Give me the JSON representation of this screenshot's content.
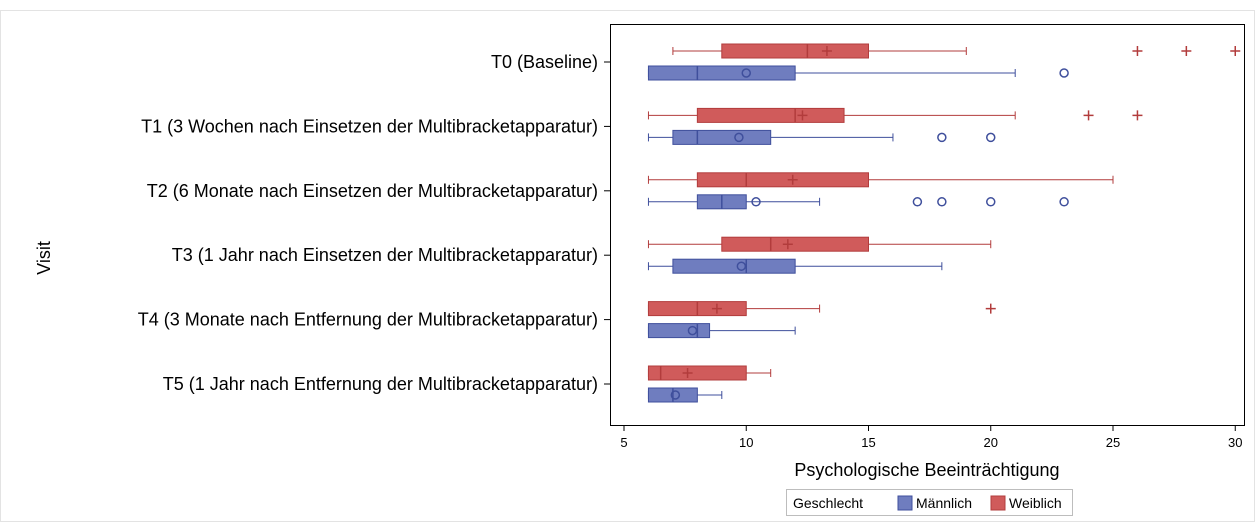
{
  "chart_data": {
    "type": "boxplot",
    "orientation": "horizontal",
    "xlabel": "Psychologische Beeinträchtigung",
    "ylabel": "Visit",
    "xlim": [
      5,
      30
    ],
    "xticks": [
      5,
      10,
      15,
      20,
      25,
      30
    ],
    "grid": false,
    "legend": {
      "title": "Geschlecht",
      "position": "bottom-center",
      "entries": [
        "Männlich",
        "Weiblich"
      ]
    },
    "categories": [
      "T0 (Baseline)",
      "T1 (3 Wochen nach Einsetzen der Multibracketapparatur)",
      "T2 (6 Monate nach Einsetzen der Multibracketapparatur)",
      "T3 (1 Jahr nach Einsetzen der Multibracketapparatur)",
      "T4 (3 Monate nach Entfernung der Multibracketapparatur)",
      "T5 (1 Jahr nach Entfernung der Multibracketapparatur)"
    ],
    "series": [
      {
        "name": "Weiblich",
        "color": "#d05b5b",
        "edge": "#b23c3c",
        "outlier_marker": "plus",
        "boxes": [
          {
            "whisker_low": 7,
            "q1": 9,
            "median": 12.5,
            "mean": 13.3,
            "q3": 15,
            "whisker_high": 19,
            "outliers": [
              26,
              28,
              30
            ]
          },
          {
            "whisker_low": 6,
            "q1": 8,
            "median": 12,
            "mean": 12.3,
            "q3": 14,
            "whisker_high": 21,
            "outliers": [
              24,
              26
            ]
          },
          {
            "whisker_low": 6,
            "q1": 8,
            "median": 10,
            "mean": 11.9,
            "q3": 15,
            "whisker_high": 25,
            "outliers": []
          },
          {
            "whisker_low": 6,
            "q1": 9,
            "median": 11,
            "mean": 11.7,
            "q3": 15,
            "whisker_high": 20,
            "outliers": []
          },
          {
            "whisker_low": 6,
            "q1": 6,
            "median": 8,
            "mean": 8.8,
            "q3": 10,
            "whisker_high": 13,
            "outliers": [
              20
            ]
          },
          {
            "whisker_low": 6,
            "q1": 6,
            "median": 6.5,
            "mean": 7.6,
            "q3": 10,
            "whisker_high": 11,
            "outliers": []
          }
        ]
      },
      {
        "name": "Männlich",
        "color": "#6f7dbf",
        "edge": "#3f4f9c",
        "outlier_marker": "circle",
        "boxes": [
          {
            "whisker_low": 6,
            "q1": 6,
            "median": 8,
            "mean": 10,
            "q3": 12,
            "whisker_high": 21,
            "outliers": [
              23
            ]
          },
          {
            "whisker_low": 6,
            "q1": 7,
            "median": 8,
            "mean": 9.7,
            "q3": 11,
            "whisker_high": 16,
            "outliers": [
              18,
              20
            ]
          },
          {
            "whisker_low": 6,
            "q1": 8,
            "median": 9,
            "mean": 10.4,
            "q3": 10,
            "whisker_high": 13,
            "outliers": [
              17,
              18,
              20,
              23
            ]
          },
          {
            "whisker_low": 6,
            "q1": 7,
            "median": 10,
            "mean": 9.8,
            "q3": 12,
            "whisker_high": 18,
            "outliers": []
          },
          {
            "whisker_low": 6,
            "q1": 6,
            "median": 8,
            "mean": 7.8,
            "q3": 8.5,
            "whisker_high": 12,
            "outliers": []
          },
          {
            "whisker_low": 6,
            "q1": 6,
            "median": 7,
            "mean": 7.1,
            "q3": 8,
            "whisker_high": 9,
            "outliers": []
          }
        ]
      }
    ]
  }
}
